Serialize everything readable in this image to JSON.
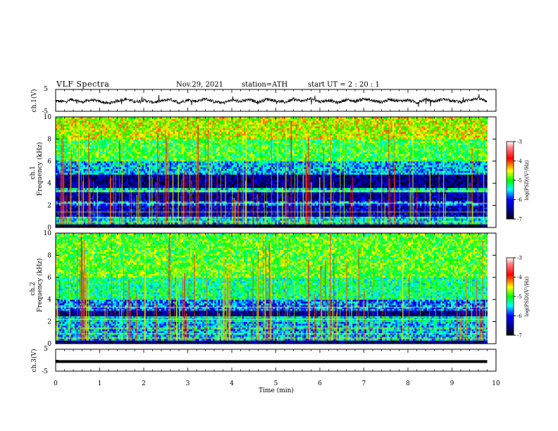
{
  "header": {
    "title": "VLF  Spectra",
    "date": "Nov.29, 2021",
    "station": "station=ATH",
    "start": "start  UT  =   2  : 20 : 1"
  },
  "colorbar": {
    "label": "log(PSD)(V²/Hz)",
    "ticks": [
      "-3",
      "-4",
      "-5",
      "-6",
      "-7"
    ],
    "colors": [
      "#ffffff",
      "#ff4040",
      "#ff0000",
      "#ffff00",
      "#00ff00",
      "#00ffff",
      "#0000ff",
      "#000060",
      "#000000"
    ]
  },
  "chart_data": [
    {
      "type": "line",
      "name": "ch1-waveform",
      "ylabel": "ch.1(V)",
      "ylim": [
        -5,
        5
      ],
      "yticks": [
        "5",
        "-5"
      ],
      "xlim": [
        0,
        10
      ],
      "x": [
        0,
        0.2,
        0.4,
        0.6,
        0.8,
        1.0,
        1.2,
        1.4,
        1.6,
        1.8,
        2.0,
        2.2,
        2.4,
        2.6,
        2.8,
        3.0,
        3.2,
        3.4,
        3.6,
        3.8,
        4.0,
        4.2,
        4.4,
        4.6,
        4.8,
        5.0,
        5.2,
        5.4,
        5.6,
        5.8,
        6.0,
        6.2,
        6.4,
        6.6,
        6.8,
        7.0,
        7.2,
        7.4,
        7.6,
        7.8,
        8.0,
        8.2,
        8.4,
        8.6,
        8.8,
        9.0,
        9.2,
        9.4,
        9.6,
        9.8
      ],
      "y": [
        -0.3,
        -0.6,
        0.4,
        -0.8,
        0.2,
        -0.5,
        -1.4,
        -0.2,
        0.6,
        -0.7,
        0.1,
        -0.9,
        -0.3,
        0.5,
        -1.0,
        0.2,
        -0.4,
        0.7,
        -0.6,
        -1.2,
        0.1,
        -0.5,
        0.3,
        -0.8,
        0.6,
        -0.2,
        -0.9,
        0.4,
        -0.3,
        0.8,
        -0.6,
        0.1,
        -1.1,
        0.3,
        -0.4,
        0.7,
        -0.2,
        -0.8,
        0.5,
        -0.3,
        0.2,
        -1.0,
        0.4,
        -0.5,
        0.6,
        -0.2,
        -0.7,
        0.3,
        0.9,
        -0.4
      ]
    },
    {
      "type": "heatmap",
      "name": "ch1-spectrogram",
      "ylabel": "ch.1",
      "ylabel2": "Frequency (kHz)",
      "ylim": [
        0,
        10
      ],
      "yticks": [
        "0",
        "2",
        "4",
        "6",
        "8",
        "10"
      ],
      "xlim": [
        0,
        10
      ],
      "zlim": [
        -7,
        -3
      ],
      "bands_khz": [
        {
          "from": 0,
          "to": 0.3,
          "level": -7
        },
        {
          "from": 0.3,
          "to": 1.0,
          "level": -5.5
        },
        {
          "from": 1.0,
          "to": 2.0,
          "level": -6.3
        },
        {
          "from": 2.0,
          "to": 2.4,
          "level": -5.8
        },
        {
          "from": 2.4,
          "to": 3.2,
          "level": -6.4
        },
        {
          "from": 3.2,
          "to": 3.6,
          "level": -5.5
        },
        {
          "from": 3.6,
          "to": 4.8,
          "level": -6.5
        },
        {
          "from": 4.8,
          "to": 6.0,
          "level": -5.6
        },
        {
          "from": 6.0,
          "to": 8.0,
          "level": -5.0
        },
        {
          "from": 8.0,
          "to": 10.0,
          "level": -4.6
        }
      ]
    },
    {
      "type": "heatmap",
      "name": "ch2-spectrogram",
      "ylabel": "ch.2",
      "ylabel2": "Frequency (kHz)",
      "ylim": [
        0,
        10
      ],
      "yticks": [
        "0",
        "2",
        "4",
        "6",
        "8",
        "10"
      ],
      "xlim": [
        0,
        10
      ],
      "zlim": [
        -7,
        -3
      ],
      "bands_khz": [
        {
          "from": 0,
          "to": 0.3,
          "level": -6.6
        },
        {
          "from": 0.3,
          "to": 2.0,
          "level": -5.6
        },
        {
          "from": 2.0,
          "to": 2.5,
          "level": -5.4
        },
        {
          "from": 2.5,
          "to": 3.0,
          "level": -6.5
        },
        {
          "from": 3.0,
          "to": 4.0,
          "level": -5.8
        },
        {
          "from": 4.0,
          "to": 6.0,
          "level": -5.2
        },
        {
          "from": 6.0,
          "to": 10.0,
          "level": -4.9
        }
      ]
    },
    {
      "type": "line",
      "name": "ch3-waveform",
      "ylabel": "ch.3(V)",
      "ylim": [
        -5,
        5
      ],
      "yticks": [
        "5",
        "-5"
      ],
      "xlim": [
        0,
        10
      ],
      "x": [
        0,
        9.8
      ],
      "y": [
        -0.6,
        -0.6
      ],
      "xlabel": "Time  (min)",
      "xticks": [
        "0",
        "1",
        "2",
        "3",
        "4",
        "5",
        "6",
        "7",
        "8",
        "9",
        "10"
      ]
    }
  ]
}
